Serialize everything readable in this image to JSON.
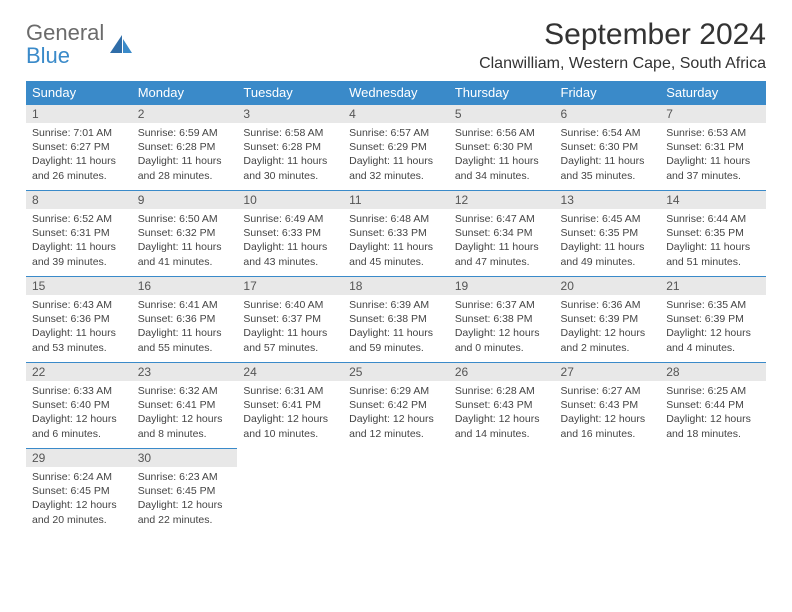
{
  "brand": {
    "name_gray": "General",
    "name_blue": "Blue"
  },
  "title": "September 2024",
  "subtitle": "Clanwilliam, Western Cape, South Africa",
  "colors": {
    "header_bg": "#3a8ac9",
    "header_fg": "#ffffff",
    "daynum_bg": "#e8e8e8",
    "cell_border": "#3a8ac9",
    "text": "#333333",
    "logo_gray": "#6b6b6b",
    "logo_blue": "#3a8ac9"
  },
  "weekdays": [
    "Sunday",
    "Monday",
    "Tuesday",
    "Wednesday",
    "Thursday",
    "Friday",
    "Saturday"
  ],
  "weeks": [
    [
      {
        "n": "1",
        "sr": "Sunrise: 7:01 AM",
        "ss": "Sunset: 6:27 PM",
        "d1": "Daylight: 11 hours",
        "d2": "and 26 minutes."
      },
      {
        "n": "2",
        "sr": "Sunrise: 6:59 AM",
        "ss": "Sunset: 6:28 PM",
        "d1": "Daylight: 11 hours",
        "d2": "and 28 minutes."
      },
      {
        "n": "3",
        "sr": "Sunrise: 6:58 AM",
        "ss": "Sunset: 6:28 PM",
        "d1": "Daylight: 11 hours",
        "d2": "and 30 minutes."
      },
      {
        "n": "4",
        "sr": "Sunrise: 6:57 AM",
        "ss": "Sunset: 6:29 PM",
        "d1": "Daylight: 11 hours",
        "d2": "and 32 minutes."
      },
      {
        "n": "5",
        "sr": "Sunrise: 6:56 AM",
        "ss": "Sunset: 6:30 PM",
        "d1": "Daylight: 11 hours",
        "d2": "and 34 minutes."
      },
      {
        "n": "6",
        "sr": "Sunrise: 6:54 AM",
        "ss": "Sunset: 6:30 PM",
        "d1": "Daylight: 11 hours",
        "d2": "and 35 minutes."
      },
      {
        "n": "7",
        "sr": "Sunrise: 6:53 AM",
        "ss": "Sunset: 6:31 PM",
        "d1": "Daylight: 11 hours",
        "d2": "and 37 minutes."
      }
    ],
    [
      {
        "n": "8",
        "sr": "Sunrise: 6:52 AM",
        "ss": "Sunset: 6:31 PM",
        "d1": "Daylight: 11 hours",
        "d2": "and 39 minutes."
      },
      {
        "n": "9",
        "sr": "Sunrise: 6:50 AM",
        "ss": "Sunset: 6:32 PM",
        "d1": "Daylight: 11 hours",
        "d2": "and 41 minutes."
      },
      {
        "n": "10",
        "sr": "Sunrise: 6:49 AM",
        "ss": "Sunset: 6:33 PM",
        "d1": "Daylight: 11 hours",
        "d2": "and 43 minutes."
      },
      {
        "n": "11",
        "sr": "Sunrise: 6:48 AM",
        "ss": "Sunset: 6:33 PM",
        "d1": "Daylight: 11 hours",
        "d2": "and 45 minutes."
      },
      {
        "n": "12",
        "sr": "Sunrise: 6:47 AM",
        "ss": "Sunset: 6:34 PM",
        "d1": "Daylight: 11 hours",
        "d2": "and 47 minutes."
      },
      {
        "n": "13",
        "sr": "Sunrise: 6:45 AM",
        "ss": "Sunset: 6:35 PM",
        "d1": "Daylight: 11 hours",
        "d2": "and 49 minutes."
      },
      {
        "n": "14",
        "sr": "Sunrise: 6:44 AM",
        "ss": "Sunset: 6:35 PM",
        "d1": "Daylight: 11 hours",
        "d2": "and 51 minutes."
      }
    ],
    [
      {
        "n": "15",
        "sr": "Sunrise: 6:43 AM",
        "ss": "Sunset: 6:36 PM",
        "d1": "Daylight: 11 hours",
        "d2": "and 53 minutes."
      },
      {
        "n": "16",
        "sr": "Sunrise: 6:41 AM",
        "ss": "Sunset: 6:36 PM",
        "d1": "Daylight: 11 hours",
        "d2": "and 55 minutes."
      },
      {
        "n": "17",
        "sr": "Sunrise: 6:40 AM",
        "ss": "Sunset: 6:37 PM",
        "d1": "Daylight: 11 hours",
        "d2": "and 57 minutes."
      },
      {
        "n": "18",
        "sr": "Sunrise: 6:39 AM",
        "ss": "Sunset: 6:38 PM",
        "d1": "Daylight: 11 hours",
        "d2": "and 59 minutes."
      },
      {
        "n": "19",
        "sr": "Sunrise: 6:37 AM",
        "ss": "Sunset: 6:38 PM",
        "d1": "Daylight: 12 hours",
        "d2": "and 0 minutes."
      },
      {
        "n": "20",
        "sr": "Sunrise: 6:36 AM",
        "ss": "Sunset: 6:39 PM",
        "d1": "Daylight: 12 hours",
        "d2": "and 2 minutes."
      },
      {
        "n": "21",
        "sr": "Sunrise: 6:35 AM",
        "ss": "Sunset: 6:39 PM",
        "d1": "Daylight: 12 hours",
        "d2": "and 4 minutes."
      }
    ],
    [
      {
        "n": "22",
        "sr": "Sunrise: 6:33 AM",
        "ss": "Sunset: 6:40 PM",
        "d1": "Daylight: 12 hours",
        "d2": "and 6 minutes."
      },
      {
        "n": "23",
        "sr": "Sunrise: 6:32 AM",
        "ss": "Sunset: 6:41 PM",
        "d1": "Daylight: 12 hours",
        "d2": "and 8 minutes."
      },
      {
        "n": "24",
        "sr": "Sunrise: 6:31 AM",
        "ss": "Sunset: 6:41 PM",
        "d1": "Daylight: 12 hours",
        "d2": "and 10 minutes."
      },
      {
        "n": "25",
        "sr": "Sunrise: 6:29 AM",
        "ss": "Sunset: 6:42 PM",
        "d1": "Daylight: 12 hours",
        "d2": "and 12 minutes."
      },
      {
        "n": "26",
        "sr": "Sunrise: 6:28 AM",
        "ss": "Sunset: 6:43 PM",
        "d1": "Daylight: 12 hours",
        "d2": "and 14 minutes."
      },
      {
        "n": "27",
        "sr": "Sunrise: 6:27 AM",
        "ss": "Sunset: 6:43 PM",
        "d1": "Daylight: 12 hours",
        "d2": "and 16 minutes."
      },
      {
        "n": "28",
        "sr": "Sunrise: 6:25 AM",
        "ss": "Sunset: 6:44 PM",
        "d1": "Daylight: 12 hours",
        "d2": "and 18 minutes."
      }
    ],
    [
      {
        "n": "29",
        "sr": "Sunrise: 6:24 AM",
        "ss": "Sunset: 6:45 PM",
        "d1": "Daylight: 12 hours",
        "d2": "and 20 minutes."
      },
      {
        "n": "30",
        "sr": "Sunrise: 6:23 AM",
        "ss": "Sunset: 6:45 PM",
        "d1": "Daylight: 12 hours",
        "d2": "and 22 minutes."
      },
      {
        "empty": true
      },
      {
        "empty": true
      },
      {
        "empty": true
      },
      {
        "empty": true
      },
      {
        "empty": true
      }
    ]
  ]
}
